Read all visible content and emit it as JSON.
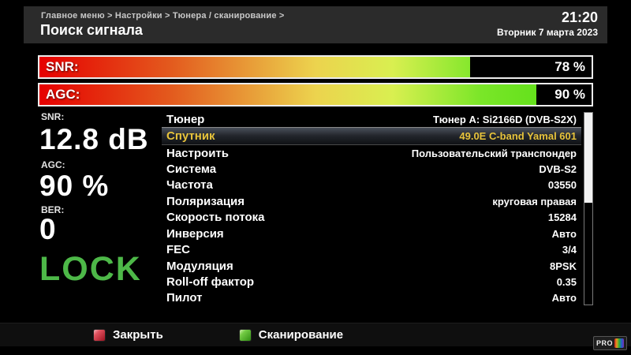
{
  "header": {
    "breadcrumb": "Главное меню > Настройки > Тюнера / сканирование >",
    "title": "Поиск сигнала",
    "time": "21:20",
    "date": "Вторник 7 марта 2023"
  },
  "bars": [
    {
      "label": "SNR:",
      "value": "78 %",
      "percent": 78
    },
    {
      "label": "AGC:",
      "value": "90 %",
      "percent": 90
    }
  ],
  "signal_panel": {
    "snr_label": "SNR:",
    "snr_value": "12.8 dB",
    "agc_label": "AGC:",
    "agc_value": "90 %",
    "ber_label": "BER:",
    "ber_value": "0",
    "lock_text": "LOCK",
    "lock_color": "#4db848"
  },
  "settings": {
    "selected_index": 1,
    "selected_color": "#e7c33b",
    "rows": [
      {
        "label": "Тюнер",
        "value": "Тюнер A: Si2166D (DVB-S2X)"
      },
      {
        "label": "Спутник",
        "value": "49.0E C-band Yamal 601"
      },
      {
        "label": "Настроить",
        "value": "Пользовательский транспондер"
      },
      {
        "label": "Система",
        "value": "DVB-S2"
      },
      {
        "label": "Частота",
        "value": "03550"
      },
      {
        "label": "Поляризация",
        "value": "круговая правая"
      },
      {
        "label": "Скорость потока",
        "value": "15284"
      },
      {
        "label": "Инверсия",
        "value": "Авто"
      },
      {
        "label": "FEC",
        "value": "3/4"
      },
      {
        "label": "Модуляция",
        "value": "8PSK"
      },
      {
        "label": "Roll-off фактор",
        "value": "0.35"
      },
      {
        "label": "Пилот",
        "value": "Авто"
      }
    ]
  },
  "footer": {
    "buttons": [
      {
        "label": "Закрыть",
        "key_color": "red"
      },
      {
        "label": "Сканирование",
        "key_color": "green"
      }
    ]
  },
  "logo": {
    "text": "PRO"
  },
  "colors": {
    "background": "#000000",
    "header_bg": "#2b2b2b",
    "bar_gradient_start": "#e60000",
    "bar_gradient_end": "#4fdc10",
    "lock_green": "#4db848",
    "selected_gold": "#e7c33b"
  }
}
